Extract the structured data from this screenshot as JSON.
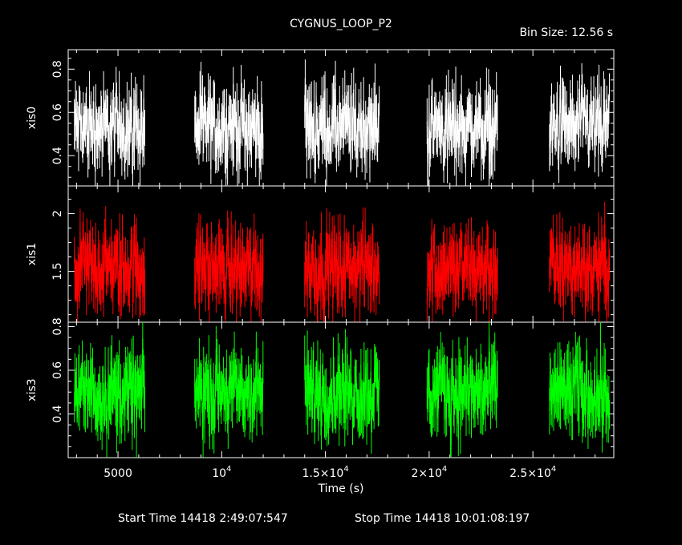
{
  "title": "CYGNUS_LOOP_P2",
  "bin_size": "Bin Size: 12.56 s",
  "footer": {
    "start": "Start Time 14418  2:49:07:547",
    "stop": "Stop Time 14418 10:01:08:197"
  },
  "chart_data": {
    "type": "line",
    "xlabel": "Time (s)",
    "xlim": [
      2600,
      28900
    ],
    "xticks": [
      {
        "value": 5000,
        "label": "5000"
      },
      {
        "value": 10000,
        "label": "10",
        "sup": "4"
      },
      {
        "value": 15000,
        "label": "1.5×10",
        "sup": "4"
      },
      {
        "value": 20000,
        "label": "2×10",
        "sup": "4"
      },
      {
        "value": 25000,
        "label": "2.5×10",
        "sup": "4"
      }
    ],
    "segments": [
      [
        2900,
        6300
      ],
      [
        8700,
        12000
      ],
      [
        14000,
        17600
      ],
      [
        19900,
        23300
      ],
      [
        25800,
        28700
      ]
    ],
    "panels": [
      {
        "ylabel": "xis0",
        "color": "#ffffff",
        "ylim": [
          0.26,
          0.89
        ],
        "yticks": [
          "0.4",
          "0.6",
          "0.8"
        ],
        "ytick_values": [
          0.4,
          0.6,
          0.8
        ],
        "mean": 0.53,
        "spread": 0.11
      },
      {
        "ylabel": "xis1",
        "color": "#ff0000",
        "ylim": [
          1.06,
          2.24
        ],
        "yticks": [
          "1.5",
          "2"
        ],
        "ytick_values": [
          1.5,
          2.0
        ],
        "mean": 1.53,
        "spread": 0.2
      },
      {
        "ylabel": "xis3",
        "color": "#00ff00",
        "ylim": [
          0.2,
          0.82
        ],
        "yticks": [
          "0.4",
          "0.6",
          "0.8"
        ],
        "ytick_values": [
          0.4,
          0.6,
          0.8
        ],
        "mean": 0.5,
        "spread": 0.11
      }
    ]
  }
}
